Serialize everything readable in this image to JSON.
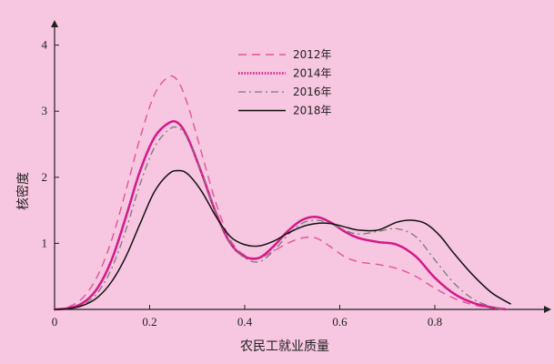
{
  "chart_data": {
    "type": "line",
    "title": "",
    "xlabel": "农民工就业质量",
    "ylabel": "核密度",
    "xlim": [
      0,
      1.0
    ],
    "ylim": [
      0,
      4.2
    ],
    "xticks": [
      0,
      0.2,
      0.4,
      0.6,
      0.8
    ],
    "yticks": [
      1,
      2,
      3,
      4
    ],
    "x_tick_labels": [
      "0",
      "0.2",
      "0.4",
      "0.6",
      "0.8"
    ],
    "y_tick_labels": [
      "1",
      "2",
      "3",
      "4"
    ],
    "grid": false,
    "legend_position": "top-center",
    "series": [
      {
        "name": "2012年",
        "color": "#e0559a",
        "dash": "dashed",
        "x": [
          0.0,
          0.03,
          0.06,
          0.09,
          0.12,
          0.15,
          0.18,
          0.21,
          0.24,
          0.26,
          0.28,
          0.31,
          0.34,
          0.37,
          0.4,
          0.43,
          0.46,
          0.49,
          0.52,
          0.55,
          0.58,
          0.61,
          0.64,
          0.68,
          0.72,
          0.76,
          0.8,
          0.84,
          0.88,
          0.92,
          0.95
        ],
        "y": [
          0.0,
          0.04,
          0.18,
          0.5,
          1.05,
          1.8,
          2.6,
          3.25,
          3.52,
          3.45,
          3.1,
          2.35,
          1.6,
          1.05,
          0.82,
          0.78,
          0.88,
          1.0,
          1.08,
          1.08,
          0.95,
          0.8,
          0.72,
          0.68,
          0.62,
          0.5,
          0.32,
          0.17,
          0.07,
          0.02,
          0.0
        ]
      },
      {
        "name": "2014年",
        "color": "#d21a8a",
        "dash": "dotted",
        "x": [
          0.0,
          0.03,
          0.06,
          0.09,
          0.12,
          0.15,
          0.18,
          0.21,
          0.24,
          0.26,
          0.28,
          0.31,
          0.34,
          0.37,
          0.4,
          0.43,
          0.46,
          0.49,
          0.52,
          0.55,
          0.58,
          0.61,
          0.64,
          0.68,
          0.72,
          0.76,
          0.8,
          0.84,
          0.88,
          0.92,
          0.95
        ],
        "y": [
          0.0,
          0.02,
          0.1,
          0.32,
          0.75,
          1.4,
          2.1,
          2.6,
          2.82,
          2.82,
          2.6,
          2.05,
          1.45,
          1.0,
          0.8,
          0.78,
          0.95,
          1.18,
          1.35,
          1.4,
          1.32,
          1.18,
          1.08,
          1.02,
          0.98,
          0.8,
          0.48,
          0.24,
          0.1,
          0.03,
          0.0
        ]
      },
      {
        "name": "2016年",
        "color": "#7a7a7a",
        "dash": "dashdot",
        "x": [
          0.0,
          0.03,
          0.06,
          0.09,
          0.12,
          0.15,
          0.18,
          0.21,
          0.24,
          0.26,
          0.28,
          0.31,
          0.34,
          0.37,
          0.4,
          0.43,
          0.46,
          0.49,
          0.52,
          0.55,
          0.58,
          0.61,
          0.64,
          0.68,
          0.72,
          0.76,
          0.8,
          0.84,
          0.88,
          0.92,
          0.95
        ],
        "y": [
          0.0,
          0.01,
          0.07,
          0.25,
          0.62,
          1.2,
          1.9,
          2.45,
          2.72,
          2.75,
          2.58,
          2.05,
          1.45,
          1.0,
          0.78,
          0.72,
          0.88,
          1.12,
          1.3,
          1.35,
          1.3,
          1.2,
          1.14,
          1.18,
          1.22,
          1.1,
          0.75,
          0.4,
          0.16,
          0.04,
          0.0
        ]
      },
      {
        "name": "2018年",
        "color": "#111111",
        "dash": "solid",
        "x": [
          0.0,
          0.03,
          0.06,
          0.09,
          0.12,
          0.15,
          0.18,
          0.21,
          0.24,
          0.26,
          0.28,
          0.31,
          0.34,
          0.37,
          0.4,
          0.43,
          0.46,
          0.49,
          0.52,
          0.55,
          0.58,
          0.61,
          0.64,
          0.68,
          0.72,
          0.75,
          0.78,
          0.81,
          0.84,
          0.88,
          0.92,
          0.96
        ],
        "y": [
          0.0,
          0.01,
          0.06,
          0.18,
          0.42,
          0.8,
          1.3,
          1.78,
          2.05,
          2.1,
          2.05,
          1.78,
          1.4,
          1.1,
          0.98,
          0.96,
          1.03,
          1.15,
          1.25,
          1.3,
          1.3,
          1.25,
          1.2,
          1.2,
          1.32,
          1.35,
          1.3,
          1.12,
          0.85,
          0.52,
          0.25,
          0.08
        ]
      }
    ]
  }
}
